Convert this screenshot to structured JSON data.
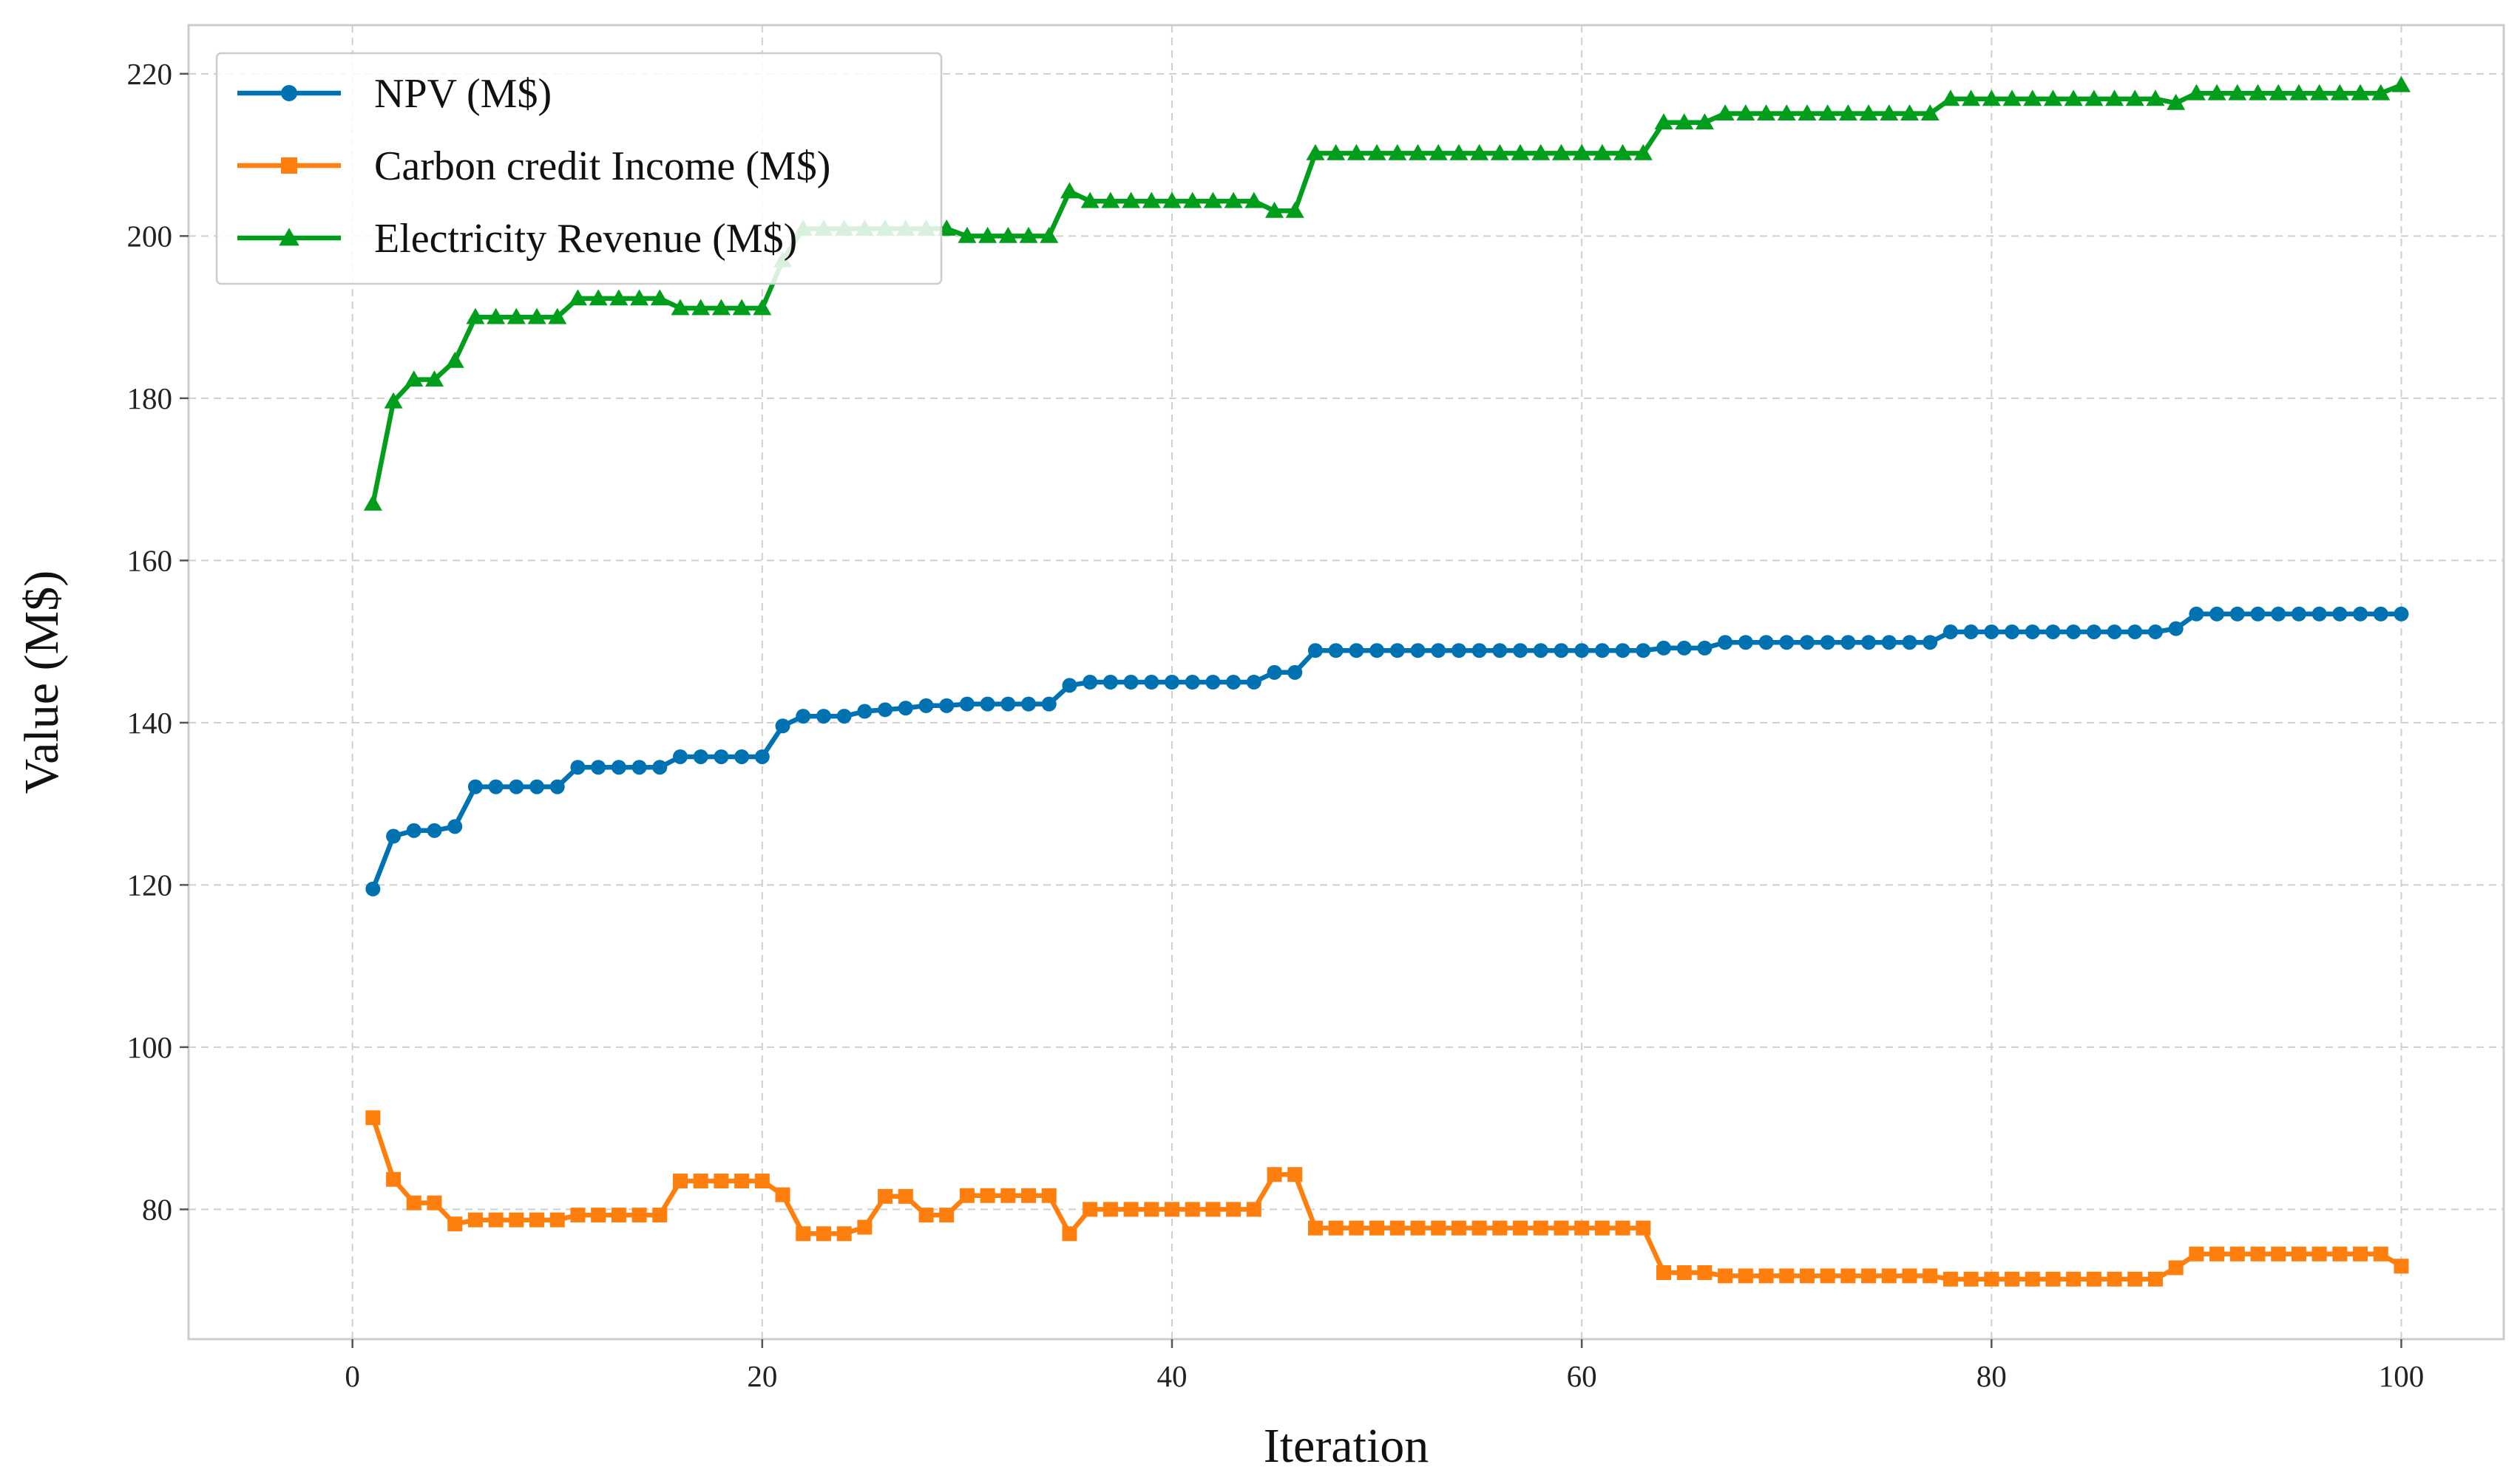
{
  "chart_data": {
    "type": "line",
    "title": "",
    "xlabel": "Iteration",
    "ylabel": "Value (M$)",
    "xlim": [
      -8,
      105
    ],
    "ylim": [
      64,
      226
    ],
    "xticks": [
      0,
      20,
      40,
      60,
      80,
      100
    ],
    "yticks": [
      80,
      100,
      120,
      140,
      160,
      180,
      200,
      220
    ],
    "grid": true,
    "legend_position": "top-left",
    "x": [
      1,
      2,
      3,
      4,
      5,
      6,
      7,
      8,
      9,
      10,
      11,
      12,
      13,
      14,
      15,
      16,
      17,
      18,
      19,
      20,
      21,
      22,
      23,
      24,
      25,
      26,
      27,
      28,
      29,
      30,
      31,
      32,
      33,
      34,
      35,
      36,
      37,
      38,
      39,
      40,
      41,
      42,
      43,
      44,
      45,
      46,
      47,
      48,
      49,
      50,
      51,
      52,
      53,
      54,
      55,
      56,
      57,
      58,
      59,
      60,
      61,
      62,
      63,
      64,
      65,
      66,
      67,
      68,
      69,
      70,
      71,
      72,
      73,
      74,
      75,
      76,
      77,
      78,
      79,
      80,
      81,
      82,
      83,
      84,
      85,
      86,
      87,
      88,
      89,
      90,
      91,
      92,
      93,
      94,
      95,
      96,
      97,
      98,
      99,
      100
    ],
    "series": [
      {
        "name": "NPV (M$)",
        "color": "#0072B2",
        "marker": "circle",
        "values": [
          119.5,
          126.0,
          126.7,
          126.7,
          127.2,
          132.1,
          132.1,
          132.1,
          132.1,
          132.1,
          134.5,
          134.5,
          134.5,
          134.5,
          134.5,
          135.8,
          135.8,
          135.8,
          135.8,
          135.8,
          139.6,
          140.8,
          140.8,
          140.8,
          141.4,
          141.6,
          141.8,
          142.1,
          142.1,
          142.3,
          142.3,
          142.3,
          142.3,
          142.3,
          144.6,
          145.0,
          145.0,
          145.0,
          145.0,
          145.0,
          145.0,
          145.0,
          145.0,
          145.0,
          146.2,
          146.2,
          148.9,
          148.9,
          148.9,
          148.9,
          148.9,
          148.9,
          148.9,
          148.9,
          148.9,
          148.9,
          148.9,
          148.9,
          148.9,
          148.9,
          148.9,
          148.9,
          148.9,
          149.2,
          149.2,
          149.2,
          149.9,
          149.9,
          149.9,
          149.9,
          149.9,
          149.9,
          149.9,
          149.9,
          149.9,
          149.9,
          149.9,
          151.2,
          151.2,
          151.2,
          151.2,
          151.2,
          151.2,
          151.2,
          151.2,
          151.2,
          151.2,
          151.2,
          151.6,
          153.4,
          153.4,
          153.4,
          153.4,
          153.4,
          153.4,
          153.4,
          153.4,
          153.4,
          153.4,
          153.4
        ]
      },
      {
        "name": "Carbon credit Income (M$)",
        "color": "#FF7F0E",
        "marker": "square",
        "values": [
          91.3,
          83.7,
          80.8,
          80.8,
          78.2,
          78.7,
          78.7,
          78.7,
          78.7,
          78.7,
          79.3,
          79.3,
          79.3,
          79.3,
          79.3,
          83.5,
          83.5,
          83.5,
          83.5,
          83.5,
          81.8,
          77.0,
          77.0,
          77.0,
          77.8,
          81.6,
          81.6,
          79.3,
          79.3,
          81.7,
          81.7,
          81.7,
          81.7,
          81.7,
          77.0,
          80.0,
          80.0,
          80.0,
          80.0,
          80.0,
          80.0,
          80.0,
          80.0,
          80.0,
          84.3,
          84.3,
          77.7,
          77.7,
          77.7,
          77.7,
          77.7,
          77.7,
          77.7,
          77.7,
          77.7,
          77.7,
          77.7,
          77.7,
          77.7,
          77.7,
          77.7,
          77.7,
          77.7,
          72.2,
          72.2,
          72.2,
          71.8,
          71.8,
          71.8,
          71.8,
          71.8,
          71.8,
          71.8,
          71.8,
          71.8,
          71.8,
          71.8,
          71.4,
          71.4,
          71.4,
          71.4,
          71.4,
          71.4,
          71.4,
          71.4,
          71.4,
          71.4,
          71.4,
          72.8,
          74.5,
          74.5,
          74.5,
          74.5,
          74.5,
          74.5,
          74.5,
          74.5,
          74.5,
          74.5,
          73.0
        ]
      },
      {
        "name": "Electricity Revenue (M$)",
        "color": "#009E1A",
        "marker": "triangle",
        "values": [
          167.0,
          179.6,
          182.3,
          182.3,
          184.6,
          190.0,
          190.0,
          190.0,
          190.0,
          190.0,
          192.3,
          192.3,
          192.3,
          192.3,
          192.3,
          191.1,
          191.1,
          191.1,
          191.1,
          191.1,
          197.0,
          200.9,
          200.9,
          200.9,
          200.9,
          200.9,
          200.9,
          200.9,
          200.9,
          200.0,
          200.0,
          200.0,
          200.0,
          200.0,
          205.5,
          204.3,
          204.3,
          204.3,
          204.3,
          204.3,
          204.3,
          204.3,
          204.3,
          204.3,
          203.1,
          203.1,
          210.2,
          210.2,
          210.2,
          210.2,
          210.2,
          210.2,
          210.2,
          210.2,
          210.2,
          210.2,
          210.2,
          210.2,
          210.2,
          210.2,
          210.2,
          210.2,
          210.2,
          214.0,
          214.0,
          214.0,
          215.1,
          215.1,
          215.1,
          215.1,
          215.1,
          215.1,
          215.1,
          215.1,
          215.1,
          215.1,
          215.1,
          216.9,
          216.9,
          216.9,
          216.9,
          216.9,
          216.9,
          216.9,
          216.9,
          216.9,
          216.9,
          216.9,
          216.4,
          217.6,
          217.6,
          217.6,
          217.6,
          217.6,
          217.6,
          217.6,
          217.6,
          217.6,
          217.6,
          218.6
        ]
      }
    ]
  }
}
